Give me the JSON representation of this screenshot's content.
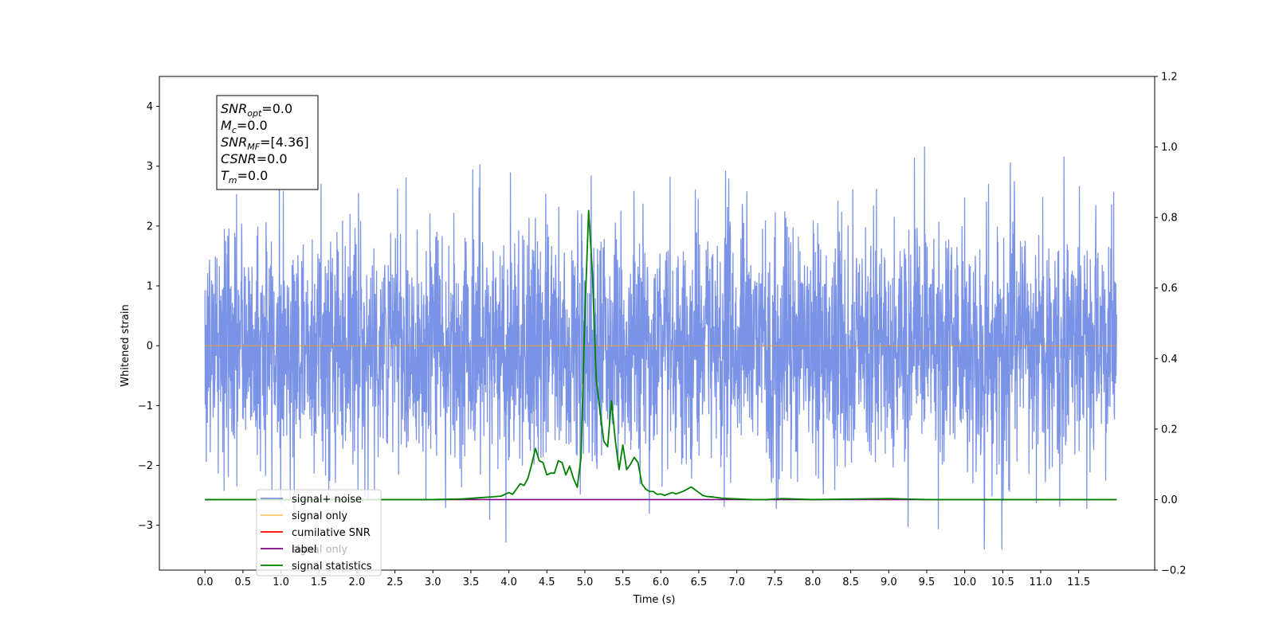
{
  "chart_data": {
    "type": "line",
    "xlabel": "Time (s)",
    "ylabel": "Whitened strain",
    "xlim": [
      -0.6,
      12.5
    ],
    "ylim": [
      -3.75,
      4.5
    ],
    "y2lim": [
      -0.2,
      1.2
    ],
    "x_ticks": [
      0.0,
      0.5,
      1.0,
      1.5,
      2.0,
      2.5,
      3.0,
      3.5,
      4.0,
      4.5,
      5.0,
      5.5,
      6.0,
      6.5,
      7.0,
      7.5,
      8.0,
      8.5,
      9.0,
      9.5,
      10.0,
      10.5,
      11.0,
      11.5
    ],
    "y_ticks": [
      -3,
      -2,
      -1,
      0,
      1,
      2,
      3,
      4
    ],
    "y2_ticks": [
      -0.2,
      0.0,
      0.2,
      0.4,
      0.6,
      0.8,
      1.0,
      1.2
    ],
    "legend_position": "lower-left",
    "colors": {
      "noise": "#7b93e6",
      "signal_only": "#ffa500",
      "cumulative_snr": "#ff0000",
      "label": "#800080",
      "statistics": "#008000"
    },
    "legend": [
      "signal+ noise",
      "signal only",
      "cumilative SNR",
      "label",
      "signal statistics"
    ],
    "hidden_legend_entry": "signal only",
    "stats_box": [
      {
        "base": "SNR",
        "sub": "opt",
        "value": "=0.0"
      },
      {
        "base": "M",
        "sub": "c",
        "value": "=0.0"
      },
      {
        "base": "SNR",
        "sub": "MF",
        "value": "=[4.36]"
      },
      {
        "base": "CSNR",
        "sub": "",
        "value": "=0.0"
      },
      {
        "base": "T",
        "sub": "m",
        "value": "=0.0"
      }
    ],
    "noise_series": {
      "name": "signal+ noise",
      "x_start": 0.0,
      "x_end": 12.0,
      "sigma": 1.0,
      "clip": [
        -3.4,
        4.15
      ]
    },
    "signal_only_series": {
      "name": "signal only",
      "value": 0.0,
      "x_range": [
        0.0,
        12.0
      ]
    },
    "label_series": {
      "name": "label",
      "value": 0.0,
      "x_range": [
        0.0,
        12.0
      ]
    },
    "statistics_series": {
      "name": "signal statistics",
      "x": [
        0.0,
        2.0,
        3.0,
        3.4,
        3.6,
        3.8,
        3.9,
        4.0,
        4.05,
        4.1,
        4.15,
        4.2,
        4.25,
        4.3,
        4.35,
        4.4,
        4.45,
        4.5,
        4.55,
        4.6,
        4.65,
        4.7,
        4.75,
        4.8,
        4.85,
        4.9,
        4.95,
        5.0,
        5.05,
        5.1,
        5.15,
        5.2,
        5.25,
        5.3,
        5.35,
        5.4,
        5.45,
        5.5,
        5.55,
        5.6,
        5.65,
        5.7,
        5.75,
        5.8,
        5.85,
        5.9,
        5.95,
        6.0,
        6.05,
        6.1,
        6.15,
        6.2,
        6.3,
        6.4,
        6.5,
        6.55,
        6.6,
        6.7,
        6.8,
        6.9,
        7.0,
        7.1,
        7.2,
        7.4,
        7.6,
        8.0,
        9.0,
        9.5,
        10.0,
        11.0,
        12.0
      ],
      "y": [
        0.0,
        0.0,
        0.0,
        0.002,
        0.005,
        0.008,
        0.01,
        0.02,
        0.015,
        0.03,
        0.045,
        0.04,
        0.06,
        0.1,
        0.145,
        0.11,
        0.105,
        0.07,
        0.075,
        0.075,
        0.11,
        0.105,
        0.07,
        0.095,
        0.06,
        0.035,
        0.12,
        0.52,
        0.82,
        0.64,
        0.34,
        0.25,
        0.165,
        0.15,
        0.28,
        0.17,
        0.085,
        0.155,
        0.085,
        0.1,
        0.12,
        0.105,
        0.045,
        0.03,
        0.023,
        0.023,
        0.015,
        0.016,
        0.012,
        0.016,
        0.02,
        0.016,
        0.024,
        0.036,
        0.02,
        0.012,
        0.009,
        0.007,
        0.004,
        0.003,
        0.002,
        0.001,
        0.0,
        0.0,
        0.003,
        0.0,
        0.003,
        0.0,
        0.0,
        0.0,
        0.0
      ]
    }
  }
}
